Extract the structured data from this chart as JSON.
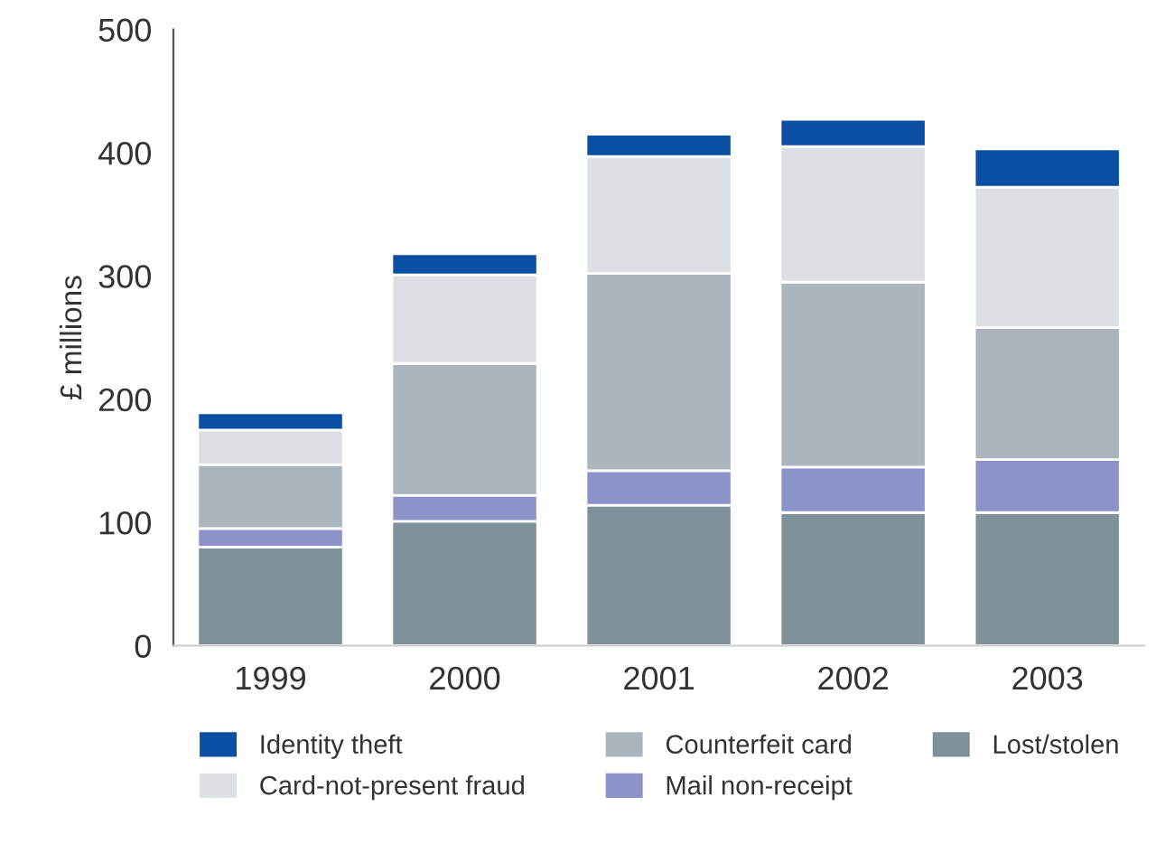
{
  "chart_data": {
    "type": "bar",
    "stacked": true,
    "ylabel": "£ millions",
    "categories": [
      "1999",
      "2000",
      "2001",
      "2002",
      "2003"
    ],
    "series": [
      {
        "name": "Lost/stolen",
        "color": "#7f929a",
        "values": [
          80,
          101,
          114,
          108,
          108
        ]
      },
      {
        "name": "Mail non-receipt",
        "color": "#8c93c9",
        "values": [
          15,
          21,
          28,
          37,
          43
        ]
      },
      {
        "name": "Counterfeit card",
        "color": "#aab5bd",
        "values": [
          52,
          107,
          160,
          150,
          107
        ]
      },
      {
        "name": "Card-not-present fraud",
        "color": "#dce0e5",
        "values": [
          28,
          72,
          95,
          110,
          114
        ]
      },
      {
        "name": "Identity theft",
        "color": "#0b4fa5",
        "values": [
          14,
          17,
          18,
          22,
          31
        ]
      }
    ],
    "ylim": [
      0,
      500
    ],
    "yticks": [
      0,
      100,
      200,
      300,
      400,
      500
    ],
    "grid": false,
    "legend": "bottom"
  }
}
